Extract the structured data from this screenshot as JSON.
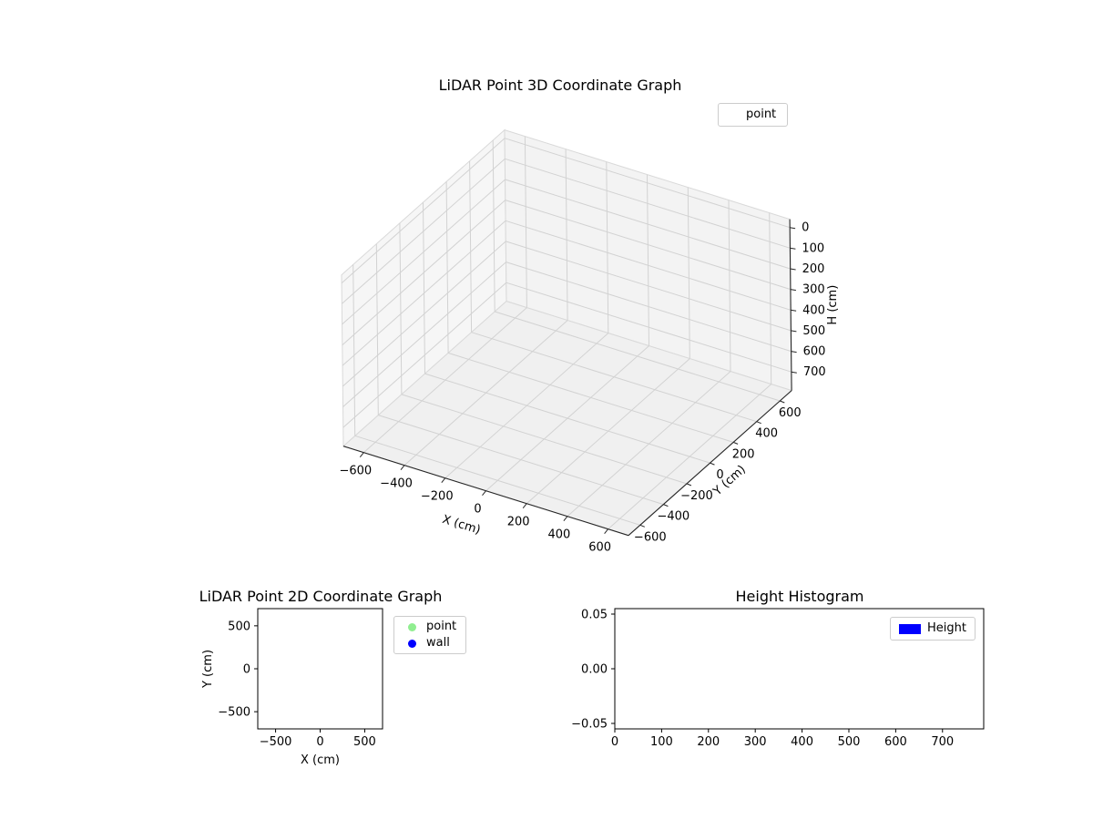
{
  "figure": {
    "background": "#ffffff"
  },
  "chart_data": [
    {
      "type": "scatter3d",
      "title": "LiDAR Point 3D Coordinate Graph",
      "xlabel": "X (cm)",
      "ylabel": "Y (cm)",
      "zlabel": "H (cm)",
      "xlim": [
        -700,
        700
      ],
      "ylim": [
        -700,
        700
      ],
      "zlim": [
        -40,
        790
      ],
      "zaxis_inverted": true,
      "xticks": [
        -600,
        -400,
        -200,
        0,
        200,
        400,
        600
      ],
      "xtick_labels": [
        "−600",
        "−400",
        "−200",
        "0",
        "200",
        "400",
        "600"
      ],
      "yticks": [
        -600,
        -400,
        -200,
        0,
        200,
        400,
        600
      ],
      "ytick_labels": [
        "−600",
        "−400",
        "−200",
        "0",
        "200",
        "400",
        "600"
      ],
      "zticks": [
        0,
        100,
        200,
        300,
        400,
        500,
        600,
        700
      ],
      "ztick_labels": [
        "0",
        "100",
        "200",
        "300",
        "400",
        "500",
        "600",
        "700"
      ],
      "grid": true,
      "legend": [
        {
          "label": "point",
          "marker_color": "none"
        }
      ],
      "series": [
        {
          "name": "point",
          "points": []
        }
      ]
    },
    {
      "type": "scatter",
      "title": "LiDAR Point 2D Coordinate Graph",
      "xlabel": "X (cm)",
      "ylabel": "Y (cm)",
      "xlim": [
        -700,
        700
      ],
      "ylim": [
        -700,
        700
      ],
      "xticks": [
        -500,
        0,
        500
      ],
      "xtick_labels": [
        "−500",
        "0",
        "500"
      ],
      "yticks": [
        -500,
        0,
        500
      ],
      "ytick_labels": [
        "−500",
        "0",
        "500"
      ],
      "grid": false,
      "legend": [
        {
          "label": "point",
          "marker_color": "#90ee90"
        },
        {
          "label": "wall",
          "marker_color": "#0000ff"
        }
      ],
      "series": [
        {
          "name": "point",
          "points": []
        },
        {
          "name": "wall",
          "points": []
        }
      ]
    },
    {
      "type": "histogram",
      "title": "Height Histogram",
      "xlabel": "",
      "ylabel": "",
      "xlim": [
        0,
        788
      ],
      "ylim": [
        -0.055,
        0.055
      ],
      "xticks": [
        0,
        100,
        200,
        300,
        400,
        500,
        600,
        700
      ],
      "xtick_labels": [
        "0",
        "100",
        "200",
        "300",
        "400",
        "500",
        "600",
        "700"
      ],
      "yticks": [
        -0.05,
        0,
        0.05
      ],
      "ytick_labels": [
        "−0.05",
        "0.00",
        "0.05"
      ],
      "grid": false,
      "legend": [
        {
          "label": "Height",
          "marker_color": "#0000ff",
          "marker_shape": "rect"
        }
      ],
      "values": []
    }
  ]
}
